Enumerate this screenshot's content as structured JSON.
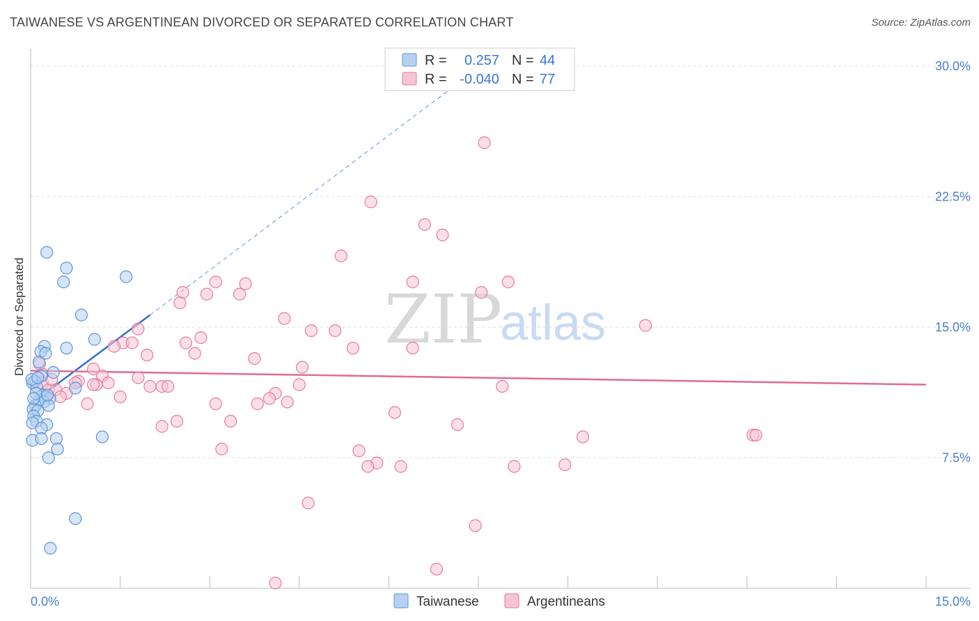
{
  "title": "TAIWANESE VS ARGENTINEAN DIVORCED OR SEPARATED CORRELATION CHART",
  "source": "Source: ZipAtlas.com",
  "watermark": {
    "zip": "ZIP",
    "atlas": "atlas"
  },
  "colors": {
    "taiwanese": "#5b93d8",
    "taiwanese_fill": "#b7d0f1",
    "argentineans": "#e8799e",
    "argentineans_fill": "#f6c4d4",
    "tick_text": "#4a7fcf"
  },
  "legend": {
    "rows": [
      {
        "r_label": "R =",
        "r_value": "0.257",
        "n_label": "N =",
        "n_value": "44"
      },
      {
        "r_label": "R =",
        "r_value": "-0.040",
        "n_label": "N =",
        "n_value": "77"
      }
    ]
  },
  "bottom_legend": [
    "Taiwanese",
    "Argentineans"
  ],
  "chart_data": {
    "type": "scatter",
    "title": "TAIWANESE VS ARGENTINEAN DIVORCED OR SEPARATED CORRELATION CHART",
    "xlabel": "",
    "ylabel": "Divorced or Separated",
    "xlim": [
      0,
      15
    ],
    "ylim": [
      0,
      31
    ],
    "x_tick_labels": [
      "0.0%",
      "15.0%"
    ],
    "y_ticks": [
      7.5,
      15.0,
      22.5,
      30.0
    ],
    "y_tick_labels": [
      "7.5%",
      "15.0%",
      "22.5%",
      "30.0%"
    ],
    "grid": true,
    "legend_position": "top-center",
    "series": [
      {
        "name": "Taiwanese",
        "r": 0.257,
        "n": 44,
        "trend": {
          "x": [
            0.0,
            2.0
          ],
          "y": [
            10.6,
            15.7
          ],
          "extended_to": [
            7.5,
            29.9
          ]
        },
        "points": [
          [
            0.27,
            19.3
          ],
          [
            0.6,
            18.4
          ],
          [
            1.6,
            17.9
          ],
          [
            0.55,
            17.6
          ],
          [
            0.85,
            15.7
          ],
          [
            1.07,
            14.3
          ],
          [
            0.23,
            13.9
          ],
          [
            0.6,
            13.8
          ],
          [
            0.17,
            13.6
          ],
          [
            0.25,
            13.5
          ],
          [
            0.14,
            13.0
          ],
          [
            0.38,
            12.4
          ],
          [
            0.18,
            12.2
          ],
          [
            0.03,
            11.8
          ],
          [
            0.07,
            11.9
          ],
          [
            0.1,
            11.6
          ],
          [
            0.75,
            11.5
          ],
          [
            0.2,
            11.1
          ],
          [
            0.25,
            11.0
          ],
          [
            0.32,
            10.9
          ],
          [
            0.15,
            10.8
          ],
          [
            0.22,
            10.7
          ],
          [
            0.3,
            10.5
          ],
          [
            0.08,
            10.5
          ],
          [
            0.04,
            10.3
          ],
          [
            0.12,
            10.2
          ],
          [
            0.05,
            9.9
          ],
          [
            0.1,
            9.6
          ],
          [
            0.03,
            9.5
          ],
          [
            0.27,
            9.4
          ],
          [
            0.18,
            9.2
          ],
          [
            1.2,
            8.7
          ],
          [
            0.03,
            8.5
          ],
          [
            0.18,
            8.6
          ],
          [
            0.43,
            8.6
          ],
          [
            0.45,
            8.0
          ],
          [
            0.3,
            7.5
          ],
          [
            0.75,
            4.0
          ],
          [
            0.33,
            2.3
          ],
          [
            0.02,
            12.0
          ],
          [
            0.09,
            11.2
          ],
          [
            0.28,
            11.1
          ],
          [
            0.05,
            10.9
          ],
          [
            0.12,
            12.1
          ]
        ]
      },
      {
        "name": "Argentineans",
        "r": -0.04,
        "n": 77,
        "trend": {
          "x": [
            0.0,
            15.0
          ],
          "y": [
            12.5,
            11.7
          ]
        },
        "points": [
          [
            7.6,
            25.6
          ],
          [
            5.7,
            22.2
          ],
          [
            6.6,
            20.9
          ],
          [
            6.9,
            20.3
          ],
          [
            5.2,
            19.1
          ],
          [
            3.1,
            17.6
          ],
          [
            3.6,
            17.5
          ],
          [
            6.4,
            17.6
          ],
          [
            8.0,
            17.6
          ],
          [
            2.55,
            17.0
          ],
          [
            2.95,
            16.9
          ],
          [
            3.5,
            16.9
          ],
          [
            7.55,
            17.0
          ],
          [
            2.5,
            16.4
          ],
          [
            4.25,
            15.5
          ],
          [
            1.8,
            14.9
          ],
          [
            4.7,
            14.8
          ],
          [
            5.1,
            14.8
          ],
          [
            10.3,
            15.1
          ],
          [
            2.6,
            14.1
          ],
          [
            2.85,
            14.4
          ],
          [
            1.55,
            14.1
          ],
          [
            1.7,
            14.1
          ],
          [
            1.4,
            13.9
          ],
          [
            5.4,
            13.8
          ],
          [
            6.4,
            13.8
          ],
          [
            1.95,
            13.4
          ],
          [
            2.75,
            13.5
          ],
          [
            3.75,
            13.2
          ],
          [
            4.55,
            12.7
          ],
          [
            1.05,
            12.6
          ],
          [
            1.2,
            12.2
          ],
          [
            0.2,
            12.3
          ],
          [
            1.8,
            12.1
          ],
          [
            0.8,
            11.9
          ],
          [
            0.2,
            11.8
          ],
          [
            1.3,
            11.8
          ],
          [
            1.1,
            11.7
          ],
          [
            0.75,
            11.8
          ],
          [
            2.0,
            11.6
          ],
          [
            2.2,
            11.6
          ],
          [
            2.3,
            11.6
          ],
          [
            4.5,
            11.7
          ],
          [
            7.9,
            11.6
          ],
          [
            0.3,
            11.4
          ],
          [
            0.6,
            11.2
          ],
          [
            0.42,
            11.4
          ],
          [
            0.5,
            11.0
          ],
          [
            4.1,
            11.2
          ],
          [
            1.5,
            11.0
          ],
          [
            4.0,
            10.9
          ],
          [
            4.3,
            10.7
          ],
          [
            3.1,
            10.6
          ],
          [
            3.8,
            10.6
          ],
          [
            0.95,
            10.6
          ],
          [
            6.1,
            10.1
          ],
          [
            3.35,
            9.6
          ],
          [
            2.45,
            9.6
          ],
          [
            2.2,
            9.3
          ],
          [
            7.15,
            9.4
          ],
          [
            9.25,
            8.7
          ],
          [
            12.1,
            8.8
          ],
          [
            12.15,
            8.8
          ],
          [
            3.2,
            8.0
          ],
          [
            5.5,
            7.9
          ],
          [
            5.8,
            7.2
          ],
          [
            5.65,
            7.0
          ],
          [
            6.2,
            7.0
          ],
          [
            8.1,
            7.0
          ],
          [
            8.95,
            7.1
          ],
          [
            4.65,
            4.9
          ],
          [
            7.45,
            3.6
          ],
          [
            6.8,
            1.1
          ],
          [
            4.1,
            0.3
          ],
          [
            0.15,
            12.9
          ],
          [
            0.35,
            12.0
          ],
          [
            1.05,
            11.7
          ]
        ]
      }
    ]
  }
}
